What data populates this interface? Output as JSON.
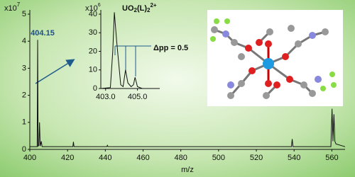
{
  "chart_data": [
    {
      "type": "line",
      "multiplier": {
        "base": "x10",
        "exponent": "7"
      },
      "x_label": "m/z",
      "annotation": "404.15",
      "x": [
        400,
        403.9,
        404.15,
        404.4,
        404.8,
        405.15,
        405.5,
        406.1,
        406.5,
        410,
        422.8,
        423.1,
        423.4,
        424,
        430,
        440.8,
        441.1,
        441.4,
        460,
        500,
        538.6,
        539,
        539.4,
        559.5,
        560.1,
        560.6,
        561.1,
        561.6,
        562.2,
        567
      ],
      "values": [
        0.1,
        0.1,
        4.05,
        0.12,
        0.15,
        1.0,
        0.12,
        0.3,
        0.1,
        0.1,
        0.1,
        0.28,
        0.1,
        0.1,
        0.1,
        0.1,
        0.15,
        0.1,
        0.1,
        0.1,
        0.1,
        0.38,
        0.1,
        0.1,
        1.5,
        0.3,
        1.3,
        0.3,
        0.2,
        0.1
      ],
      "color": "#111111",
      "xlim": [
        400,
        567
      ],
      "xticks": [
        400,
        420,
        440,
        460,
        480,
        500,
        520,
        540,
        560
      ],
      "ylim": [
        0,
        5
      ],
      "yticks": [
        0,
        1,
        2,
        3,
        4,
        5
      ]
    },
    {
      "type": "line",
      "multiplier": {
        "base": "x10",
        "exponent": "6"
      },
      "title_parts": [
        "UO",
        "2",
        "(L)",
        "2",
        "2+"
      ],
      "annotation": "Δpp = 0.5",
      "x": [
        402.7,
        403.3,
        403.45,
        403.55,
        403.7,
        403.95,
        404.1,
        404.25,
        404.4,
        404.6,
        404.75,
        404.85,
        405.0,
        405.3,
        406.4
      ],
      "values": [
        0,
        0.5,
        20,
        41,
        25,
        2,
        1,
        10,
        3,
        1,
        2,
        6,
        1,
        0,
        0
      ],
      "color": "#111111",
      "xlim": [
        402.7,
        406.4
      ],
      "xticks": [
        {
          "value": 403,
          "label": "403.0"
        },
        {
          "value": 405,
          "label": "405.0"
        }
      ],
      "ylim": [
        0,
        40
      ],
      "yticks": [
        0,
        10,
        20,
        30,
        40
      ]
    }
  ]
}
